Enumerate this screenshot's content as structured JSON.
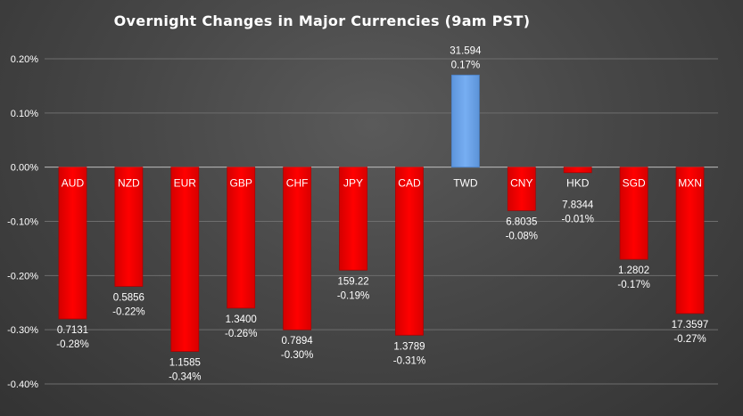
{
  "chart_data": {
    "type": "bar",
    "title": "Overnight Changes in Major Currencies (9am PST)",
    "xlabel": "",
    "ylabel": "",
    "ylim": [
      -0.4,
      0.2
    ],
    "yticks": [
      "0.20%",
      "0.10%",
      "0.00%",
      "-0.10%",
      "-0.20%",
      "-0.30%",
      "-0.40%"
    ],
    "grid": true,
    "legend": "none",
    "colors": {
      "negative": "#ff0000",
      "positive": "#6fa8f0"
    },
    "categories": [
      "AUD",
      "NZD",
      "EUR",
      "GBP",
      "CHF",
      "JPY",
      "CAD",
      "TWD",
      "CNY",
      "HKD",
      "SGD",
      "MXN"
    ],
    "values": [
      -0.28,
      -0.22,
      -0.34,
      -0.26,
      -0.3,
      -0.19,
      -0.31,
      0.17,
      -0.08,
      -0.01,
      -0.17,
      -0.27
    ],
    "rates": [
      "0.7131",
      "0.5856",
      "1.1585",
      "1.3400",
      "0.7894",
      "159.22",
      "1.3789",
      "31.594",
      "6.8035",
      "7.8344",
      "1.2802",
      "17.3597"
    ],
    "pct_labels": [
      "-0.28%",
      "-0.22%",
      "-0.34%",
      "-0.26%",
      "-0.30%",
      "-0.19%",
      "-0.31%",
      "0.17%",
      "-0.08%",
      "-0.01%",
      "-0.17%",
      "-0.27%"
    ]
  }
}
